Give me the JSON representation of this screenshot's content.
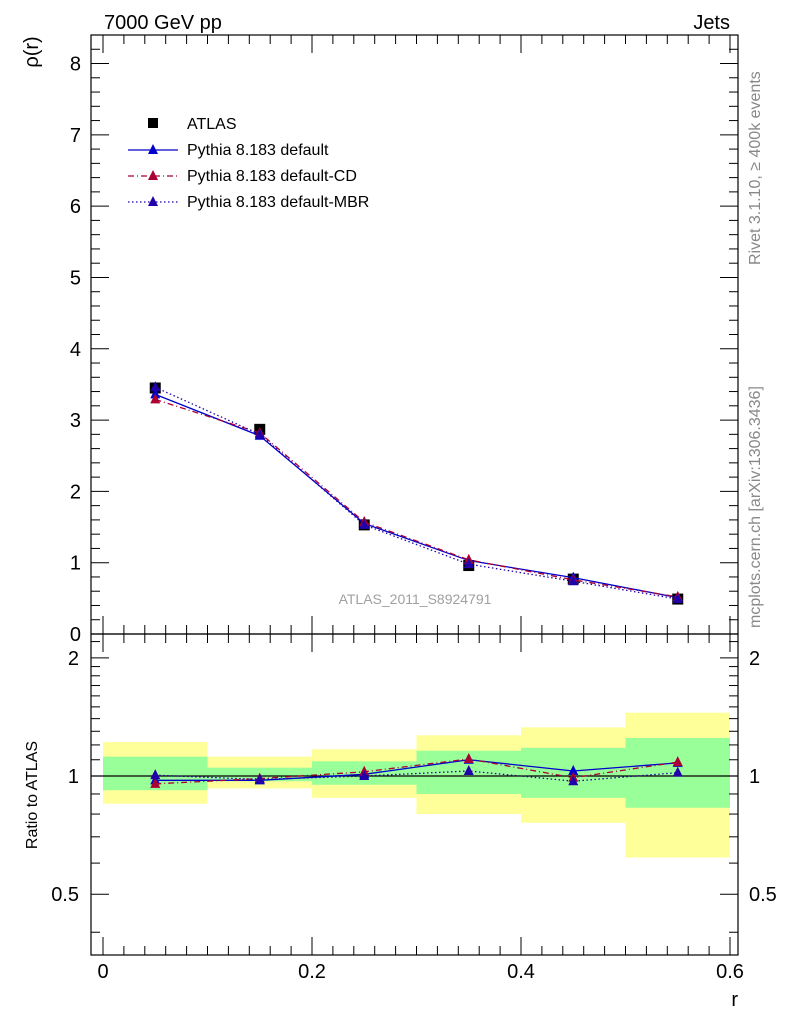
{
  "header": {
    "left": "7000 GeV pp",
    "right": "Jets"
  },
  "side_labels": {
    "rivet": "Rivet 3.1.10, ≥ 400k events",
    "mcplots": "mcplots.cern.ch [arXiv:1306.3436]"
  },
  "watermark": "ATLAS_2011_S8924791",
  "legend": [
    {
      "label": "ATLAS",
      "marker": "square",
      "color": "#000000",
      "line": "none"
    },
    {
      "label": "Pythia 8.183 default",
      "marker": "triangle",
      "color": "#0000cc",
      "line": "solid"
    },
    {
      "label": "Pythia 8.183 default-CD",
      "marker": "triangle",
      "color": "#aa0033",
      "line": "dashdot"
    },
    {
      "label": "Pythia 8.183 default-MBR",
      "marker": "triangle",
      "color": "#2200aa",
      "line": "dotted"
    }
  ],
  "chart_data": [
    {
      "type": "line",
      "panel": "main",
      "title": "",
      "xlabel": "r",
      "ylabel": "ρ(r)",
      "xlim": [
        0,
        0.6
      ],
      "ylim": [
        0,
        8.4
      ],
      "yticks": [
        0,
        1,
        2,
        3,
        4,
        5,
        6,
        7,
        8
      ],
      "ytick_labels": [
        "0",
        "1",
        "2",
        "3",
        "4",
        "5",
        "6",
        "7",
        "8"
      ],
      "x": [
        0.05,
        0.15,
        0.25,
        0.35,
        0.45,
        0.55
      ],
      "series": [
        {
          "name": "ATLAS",
          "values": [
            3.45,
            2.87,
            1.53,
            0.96,
            0.77,
            0.49
          ]
        },
        {
          "name": "Pythia 8.183 default",
          "values": [
            3.36,
            2.78,
            1.55,
            1.03,
            0.79,
            0.51
          ]
        },
        {
          "name": "Pythia 8.183 default-CD",
          "values": [
            3.29,
            2.82,
            1.57,
            1.04,
            0.76,
            0.52
          ]
        },
        {
          "name": "Pythia 8.183 default-MBR",
          "values": [
            3.46,
            2.8,
            1.53,
            0.98,
            0.74,
            0.49
          ]
        }
      ]
    },
    {
      "type": "line",
      "panel": "ratio",
      "xlabel": "r",
      "ylabel": "Ratio to ATLAS",
      "xlim": [
        0,
        0.6
      ],
      "ylim": [
        0.35,
        2.3
      ],
      "scale": "log",
      "xticks": [
        0,
        0.2,
        0.4,
        0.6
      ],
      "xtick_labels": [
        "0",
        "0.2",
        "0.4",
        "0.6"
      ],
      "yticks": [
        0.5,
        1,
        2
      ],
      "ytick_labels": [
        "0.5",
        "1",
        "2"
      ],
      "x": [
        0.05,
        0.15,
        0.25,
        0.35,
        0.45,
        0.55
      ],
      "bands": {
        "bins": [
          [
            0,
            0.1
          ],
          [
            0.1,
            0.2
          ],
          [
            0.2,
            0.3
          ],
          [
            0.3,
            0.4
          ],
          [
            0.4,
            0.5
          ],
          [
            0.5,
            0.6
          ]
        ],
        "yellow": [
          [
            0.85,
            1.22
          ],
          [
            0.93,
            1.12
          ],
          [
            0.88,
            1.17
          ],
          [
            0.8,
            1.27
          ],
          [
            0.76,
            1.33
          ],
          [
            0.62,
            1.45
          ]
        ],
        "green": [
          [
            0.92,
            1.12
          ],
          [
            0.97,
            1.05
          ],
          [
            0.95,
            1.09
          ],
          [
            0.9,
            1.16
          ],
          [
            0.88,
            1.18
          ],
          [
            0.83,
            1.25
          ]
        ]
      },
      "series": [
        {
          "name": "Pythia 8.183 default",
          "values": [
            0.975,
            0.975,
            1.01,
            1.1,
            1.03,
            1.08
          ]
        },
        {
          "name": "Pythia 8.183 default-CD",
          "values": [
            0.955,
            0.985,
            1.025,
            1.105,
            0.99,
            1.085
          ]
        },
        {
          "name": "Pythia 8.183 default-MBR",
          "values": [
            1.005,
            0.98,
            1.0,
            1.03,
            0.97,
            1.02
          ]
        }
      ]
    }
  ]
}
